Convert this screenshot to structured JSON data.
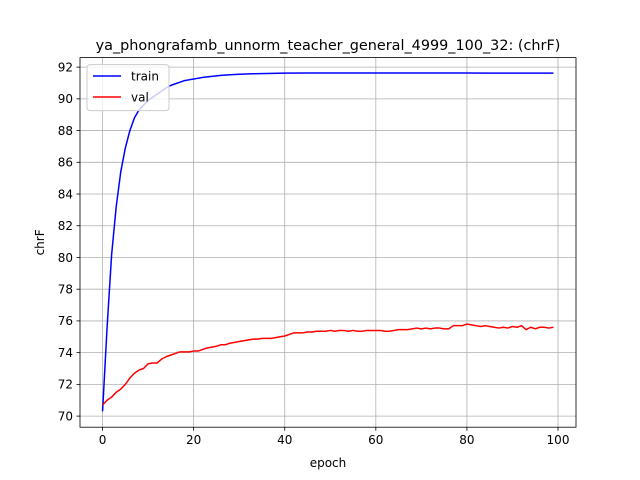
{
  "chart_data": {
    "type": "line",
    "title": "ya_phongrafamb_unnorm_teacher_general_4999_100_32: (chrF)",
    "xlabel": "epoch",
    "ylabel": "chrF",
    "xlim": [
      -4.95,
      103.95
    ],
    "ylim": [
      69.3,
      92.6
    ],
    "xticks": [
      0,
      20,
      40,
      60,
      80,
      100
    ],
    "yticks": [
      70,
      72,
      74,
      76,
      78,
      80,
      82,
      84,
      86,
      88,
      90,
      92
    ],
    "grid": true,
    "legend_position": "upper-left",
    "series": [
      {
        "name": "train",
        "color": "#0000ff",
        "x": [
          0,
          1,
          2,
          3,
          4,
          5,
          6,
          7,
          8,
          9,
          10,
          11,
          12,
          13,
          14,
          15,
          16,
          17,
          18,
          19,
          20,
          22,
          24,
          26,
          28,
          30,
          33,
          36,
          40,
          45,
          50,
          55,
          60,
          65,
          70,
          75,
          80,
          85,
          90,
          95,
          99
        ],
        "y": [
          70.3,
          75.6,
          80.2,
          83.2,
          85.4,
          86.9,
          88.0,
          88.8,
          89.3,
          89.6,
          89.9,
          90.1,
          90.3,
          90.5,
          90.7,
          90.85,
          90.95,
          91.05,
          91.15,
          91.2,
          91.25,
          91.35,
          91.42,
          91.48,
          91.52,
          91.55,
          91.58,
          91.6,
          91.62,
          91.63,
          91.63,
          91.63,
          91.63,
          91.63,
          91.63,
          91.63,
          91.63,
          91.62,
          91.62,
          91.62,
          91.62
        ]
      },
      {
        "name": "val",
        "color": "#ff0000",
        "x": [
          0,
          1,
          2,
          3,
          4,
          5,
          6,
          7,
          8,
          9,
          10,
          11,
          12,
          13,
          14,
          15,
          16,
          17,
          18,
          19,
          20,
          21,
          22,
          23,
          24,
          25,
          26,
          27,
          28,
          29,
          30,
          31,
          32,
          33,
          34,
          35,
          36,
          37,
          38,
          39,
          40,
          41,
          42,
          43,
          44,
          45,
          46,
          47,
          48,
          49,
          50,
          51,
          52,
          53,
          54,
          55,
          56,
          57,
          58,
          59,
          60,
          61,
          62,
          63,
          64,
          65,
          66,
          67,
          68,
          69,
          70,
          71,
          72,
          73,
          74,
          75,
          76,
          77,
          78,
          79,
          80,
          81,
          82,
          83,
          84,
          85,
          86,
          87,
          88,
          89,
          90,
          91,
          92,
          93,
          94,
          95,
          96,
          97,
          98,
          99
        ],
        "y": [
          70.7,
          71.0,
          71.2,
          71.5,
          71.7,
          72.0,
          72.4,
          72.7,
          72.9,
          73.0,
          73.3,
          73.35,
          73.35,
          73.6,
          73.75,
          73.85,
          73.95,
          74.05,
          74.05,
          74.05,
          74.1,
          74.1,
          74.2,
          74.3,
          74.35,
          74.4,
          74.5,
          74.5,
          74.6,
          74.65,
          74.7,
          74.75,
          74.8,
          74.85,
          74.85,
          74.9,
          74.9,
          74.9,
          74.95,
          75.0,
          75.05,
          75.15,
          75.25,
          75.25,
          75.25,
          75.3,
          75.3,
          75.35,
          75.35,
          75.35,
          75.4,
          75.35,
          75.4,
          75.4,
          75.35,
          75.4,
          75.35,
          75.35,
          75.4,
          75.4,
          75.4,
          75.4,
          75.35,
          75.35,
          75.4,
          75.45,
          75.45,
          75.45,
          75.5,
          75.55,
          75.5,
          75.55,
          75.5,
          75.55,
          75.55,
          75.5,
          75.5,
          75.7,
          75.7,
          75.7,
          75.8,
          75.75,
          75.7,
          75.65,
          75.7,
          75.65,
          75.6,
          75.55,
          75.6,
          75.55,
          75.65,
          75.6,
          75.7,
          75.45,
          75.6,
          75.5,
          75.6,
          75.6,
          75.55,
          75.6
        ]
      }
    ]
  }
}
